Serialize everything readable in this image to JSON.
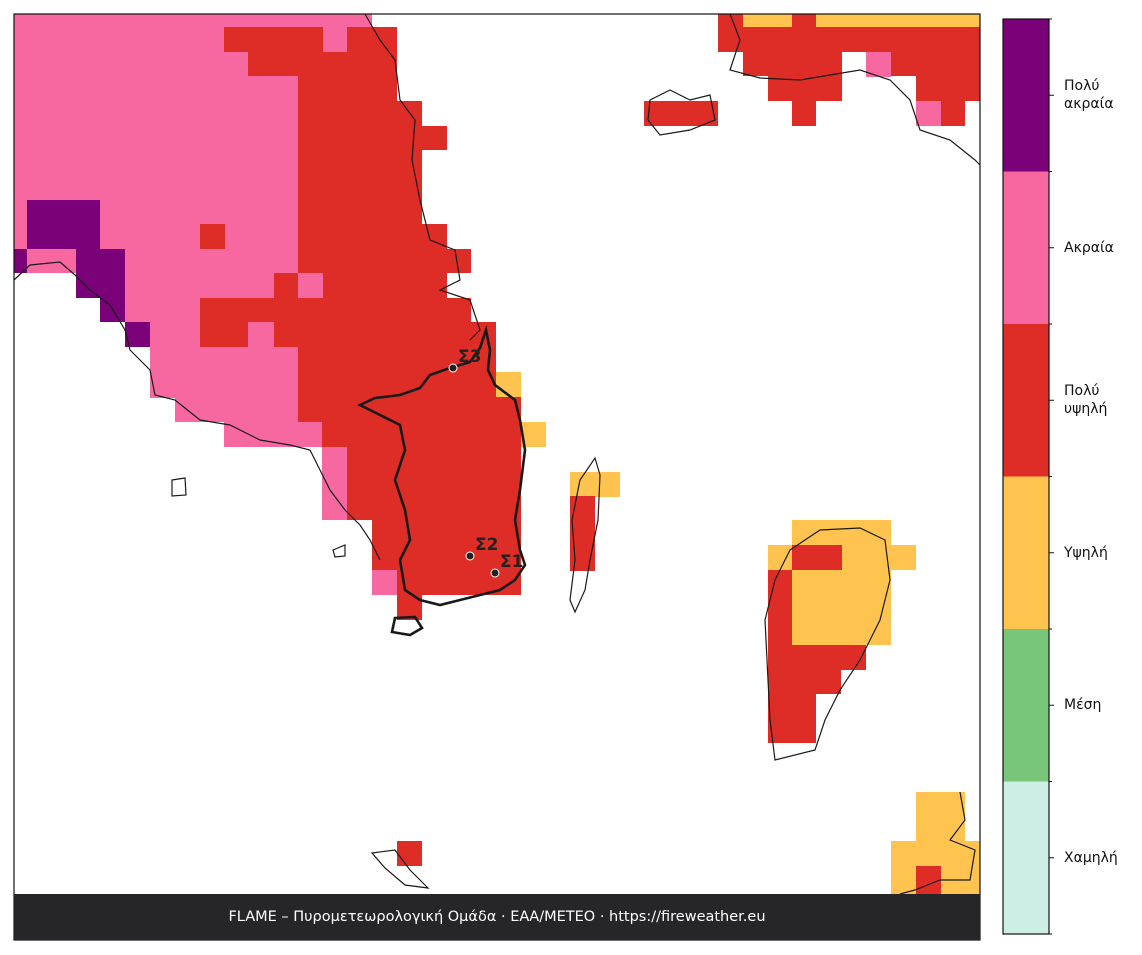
{
  "legend": {
    "levels": [
      {
        "label": "Χαμηλή",
        "color": "#cdeee5"
      },
      {
        "label": "Μέση",
        "color": "#78c679"
      },
      {
        "label": "Υψηλή",
        "color": "#fec44f"
      },
      {
        "label": "Πολύ υψηλή",
        "color": "#de2d26"
      },
      {
        "label": "Ακραία",
        "color": "#f768a1"
      },
      {
        "label": "Πολύ ακραία",
        "color": "#7a0177"
      }
    ]
  },
  "stations": [
    {
      "label": "Σ1"
    },
    {
      "label": "Σ2"
    },
    {
      "label": "Σ3"
    }
  ],
  "footer": "FLAME – Πυρομετεωρολογική Ομάδα · ΕΑΑ/METEO · https://fireweather.eu"
}
